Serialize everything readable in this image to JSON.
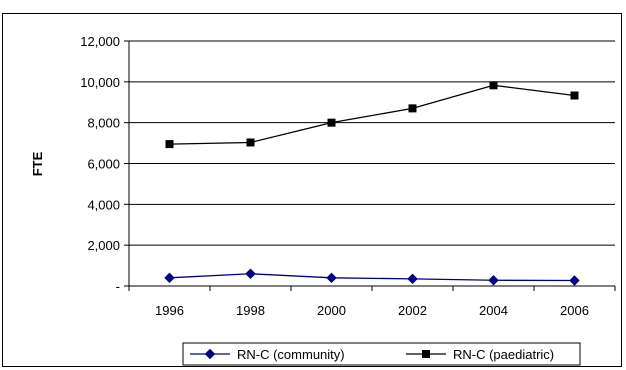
{
  "chart_data": {
    "type": "line",
    "categories": [
      "1996",
      "1998",
      "2000",
      "2002",
      "2004",
      "2006"
    ],
    "ylabel": "FTE",
    "ylim": [
      0,
      12000
    ],
    "yticks": [
      "-",
      "2,000",
      "4,000",
      "6,000",
      "8,000",
      "10,000",
      "12,000"
    ],
    "ytick_values": [
      0,
      2000,
      4000,
      6000,
      8000,
      10000,
      12000
    ],
    "grid": true,
    "legend_position": "bottom",
    "series": [
      {
        "name": "RN-C (community)",
        "values": [
          400,
          600,
          400,
          350,
          280,
          270
        ],
        "color": "#000080",
        "marker": "diamond"
      },
      {
        "name": "RN-C (paediatric)",
        "values": [
          6950,
          7030,
          8000,
          8700,
          9830,
          9330
        ],
        "color": "#000000",
        "marker": "square"
      }
    ]
  }
}
